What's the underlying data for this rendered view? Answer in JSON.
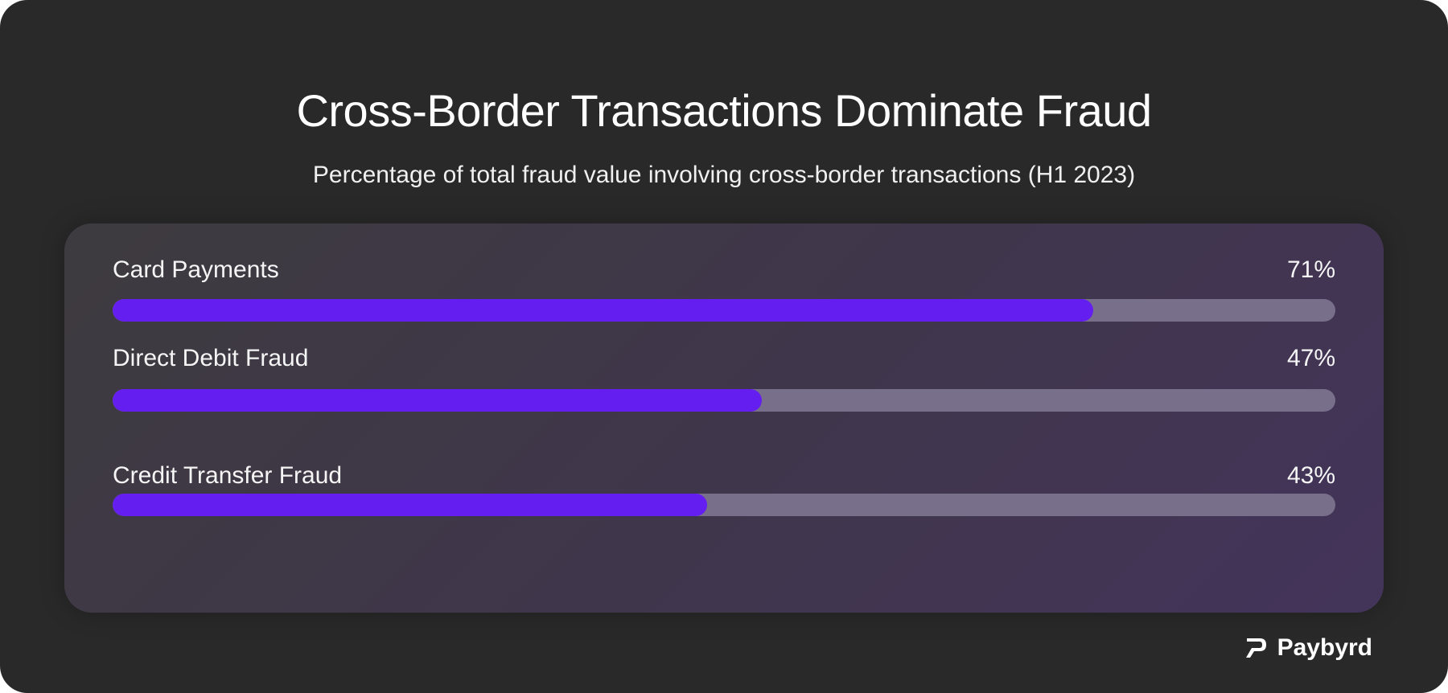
{
  "chart_data": {
    "type": "bar",
    "orientation": "horizontal",
    "title": "Cross-Border Transactions Dominate Fraud",
    "subtitle": "Percentage of total fraud value involving cross-border transactions (H1 2023)",
    "categories": [
      "Card Payments",
      "Direct Debit Fraud",
      "Credit Transfer Fraud"
    ],
    "values": [
      71,
      47,
      43
    ],
    "value_labels": [
      "71%",
      "47%",
      "43%"
    ],
    "ylim": [
      0,
      100
    ],
    "grid": false,
    "legend": "none",
    "colors": {
      "fill": "#651ef0",
      "track": "#78708a",
      "background": "#292929",
      "panel": "#40364c"
    }
  },
  "brand": {
    "name": "Paybyrd",
    "icon": "paybyrd-logo-icon"
  }
}
